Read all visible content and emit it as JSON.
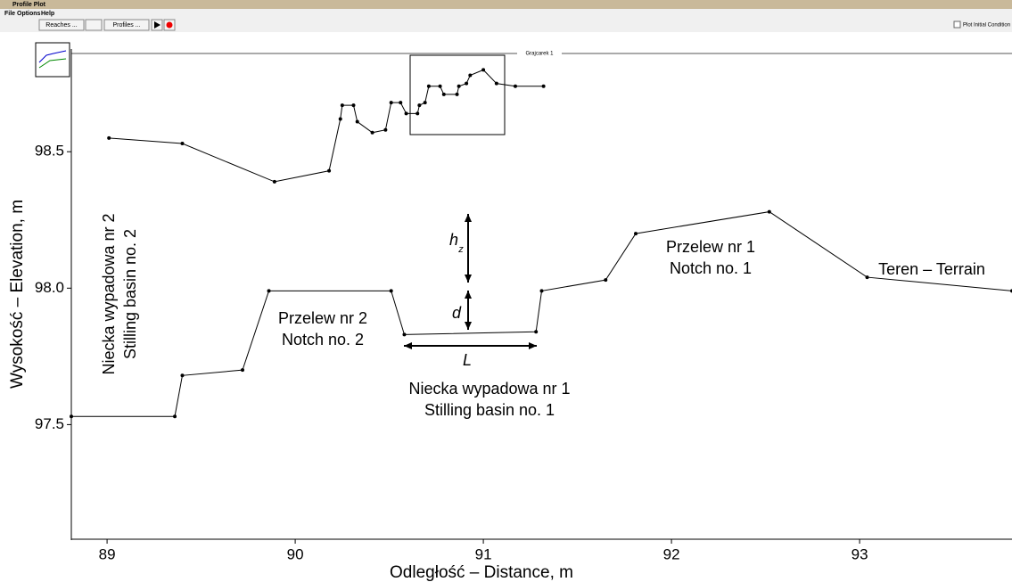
{
  "window": {
    "title": "Profile Plot"
  },
  "menu": [
    "File",
    "Options",
    "Help"
  ],
  "toolbar": {
    "reaches": "Reaches ...",
    "profiles": "Profiles ...",
    "checkbox": "Plot Initial Condition"
  },
  "chart_data": {
    "type": "line",
    "title": "Grajcarek 1",
    "xlabel": "Odległość – Distance, m",
    "ylabel": "Wysokość – Elevation, m",
    "xlim": [
      88.81,
      93.81
    ],
    "xticks": [
      89,
      90,
      91,
      92,
      93
    ],
    "ylim": [
      97.08,
      98.86
    ],
    "yticks": [
      97.5,
      {
        "value": 98.0,
        "label": "98.0"
      },
      98.5
    ],
    "series": [
      {
        "color": "#000000",
        "x": [
          88.81,
          89.36,
          89.4,
          89.72,
          89.86,
          90.51,
          90.58,
          91.28,
          91.31,
          91.65,
          91.81,
          92.52,
          93.04,
          93.81
        ],
        "values": [
          97.53,
          97.53,
          97.68,
          97.7,
          97.99,
          97.99,
          97.83,
          97.84,
          97.99,
          98.03,
          98.2,
          98.28,
          98.04,
          97.99
        ]
      },
      {
        "color": "#000000",
        "x": [
          89.01,
          89.4,
          89.89,
          90.18,
          90.24,
          90.25,
          90.31,
          90.33,
          90.41,
          90.48,
          90.51,
          90.56,
          90.59,
          90.65,
          90.66,
          90.69,
          90.71,
          90.77,
          90.79,
          90.86,
          90.87,
          90.91,
          90.93,
          91.0,
          91.07,
          91.17,
          91.32
        ],
        "values": [
          98.55,
          98.53,
          98.39,
          98.43,
          98.62,
          98.67,
          98.67,
          98.61,
          98.57,
          98.58,
          98.68,
          98.68,
          98.64,
          98.64,
          98.67,
          98.68,
          98.74,
          98.74,
          98.71,
          98.71,
          98.74,
          98.75,
          98.78,
          98.8,
          98.75,
          98.74,
          98.74
        ]
      }
    ],
    "annotations": [
      {
        "lines": [
          "Przelew nr 1",
          "Notch no. 1"
        ]
      },
      {
        "lines": [
          "Teren – Terrain"
        ]
      },
      {
        "lines": [
          "Przelew nr 2",
          "Notch no. 2"
        ]
      },
      {
        "lines": [
          "Niecka wypadowa nr 1",
          "Stilling basin no. 1"
        ]
      },
      {
        "lines": [
          "Niecka wypadowa nr 2",
          "Stilling basin no. 2"
        ]
      }
    ],
    "symbols": {
      "h": "h",
      "z": "z",
      "d": "d",
      "L": "L"
    }
  }
}
